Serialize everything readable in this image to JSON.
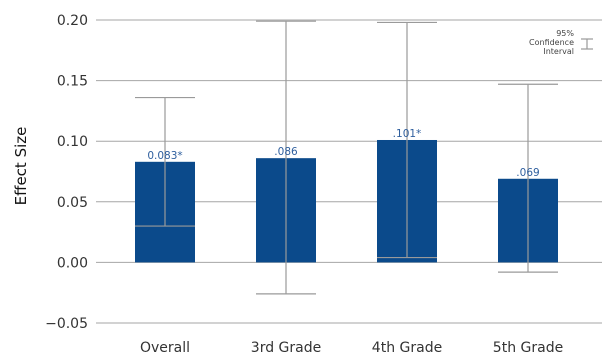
{
  "chart_data": {
    "type": "bar",
    "title": "",
    "ylabel": "Effect Size",
    "xlabel": "",
    "ylim": [
      -0.05,
      0.2
    ],
    "yticks": [
      -0.05,
      0.0,
      0.05,
      0.1,
      0.15,
      0.2
    ],
    "ytick_labels": [
      "−0.05",
      "0.00",
      "0.05",
      "0.10",
      "0.15",
      "0.20"
    ],
    "grid": true,
    "categories": [
      "Overall",
      "3rd Grade",
      "4th Grade",
      "5th Grade"
    ],
    "values": [
      0.083,
      0.086,
      0.101,
      0.069
    ],
    "value_labels": [
      "0.083*",
      ".086",
      ".101*",
      ".069"
    ],
    "ci_lower": [
      0.03,
      -0.026,
      0.004,
      -0.008
    ],
    "ci_upper": [
      0.136,
      0.199,
      0.198,
      0.147
    ],
    "bar_color": "#0b4a8b",
    "value_label_color": "#2f5f9e",
    "legend": {
      "placement": "top-right",
      "label_lines": [
        "95%",
        "Confidence",
        "Interval"
      ]
    }
  }
}
